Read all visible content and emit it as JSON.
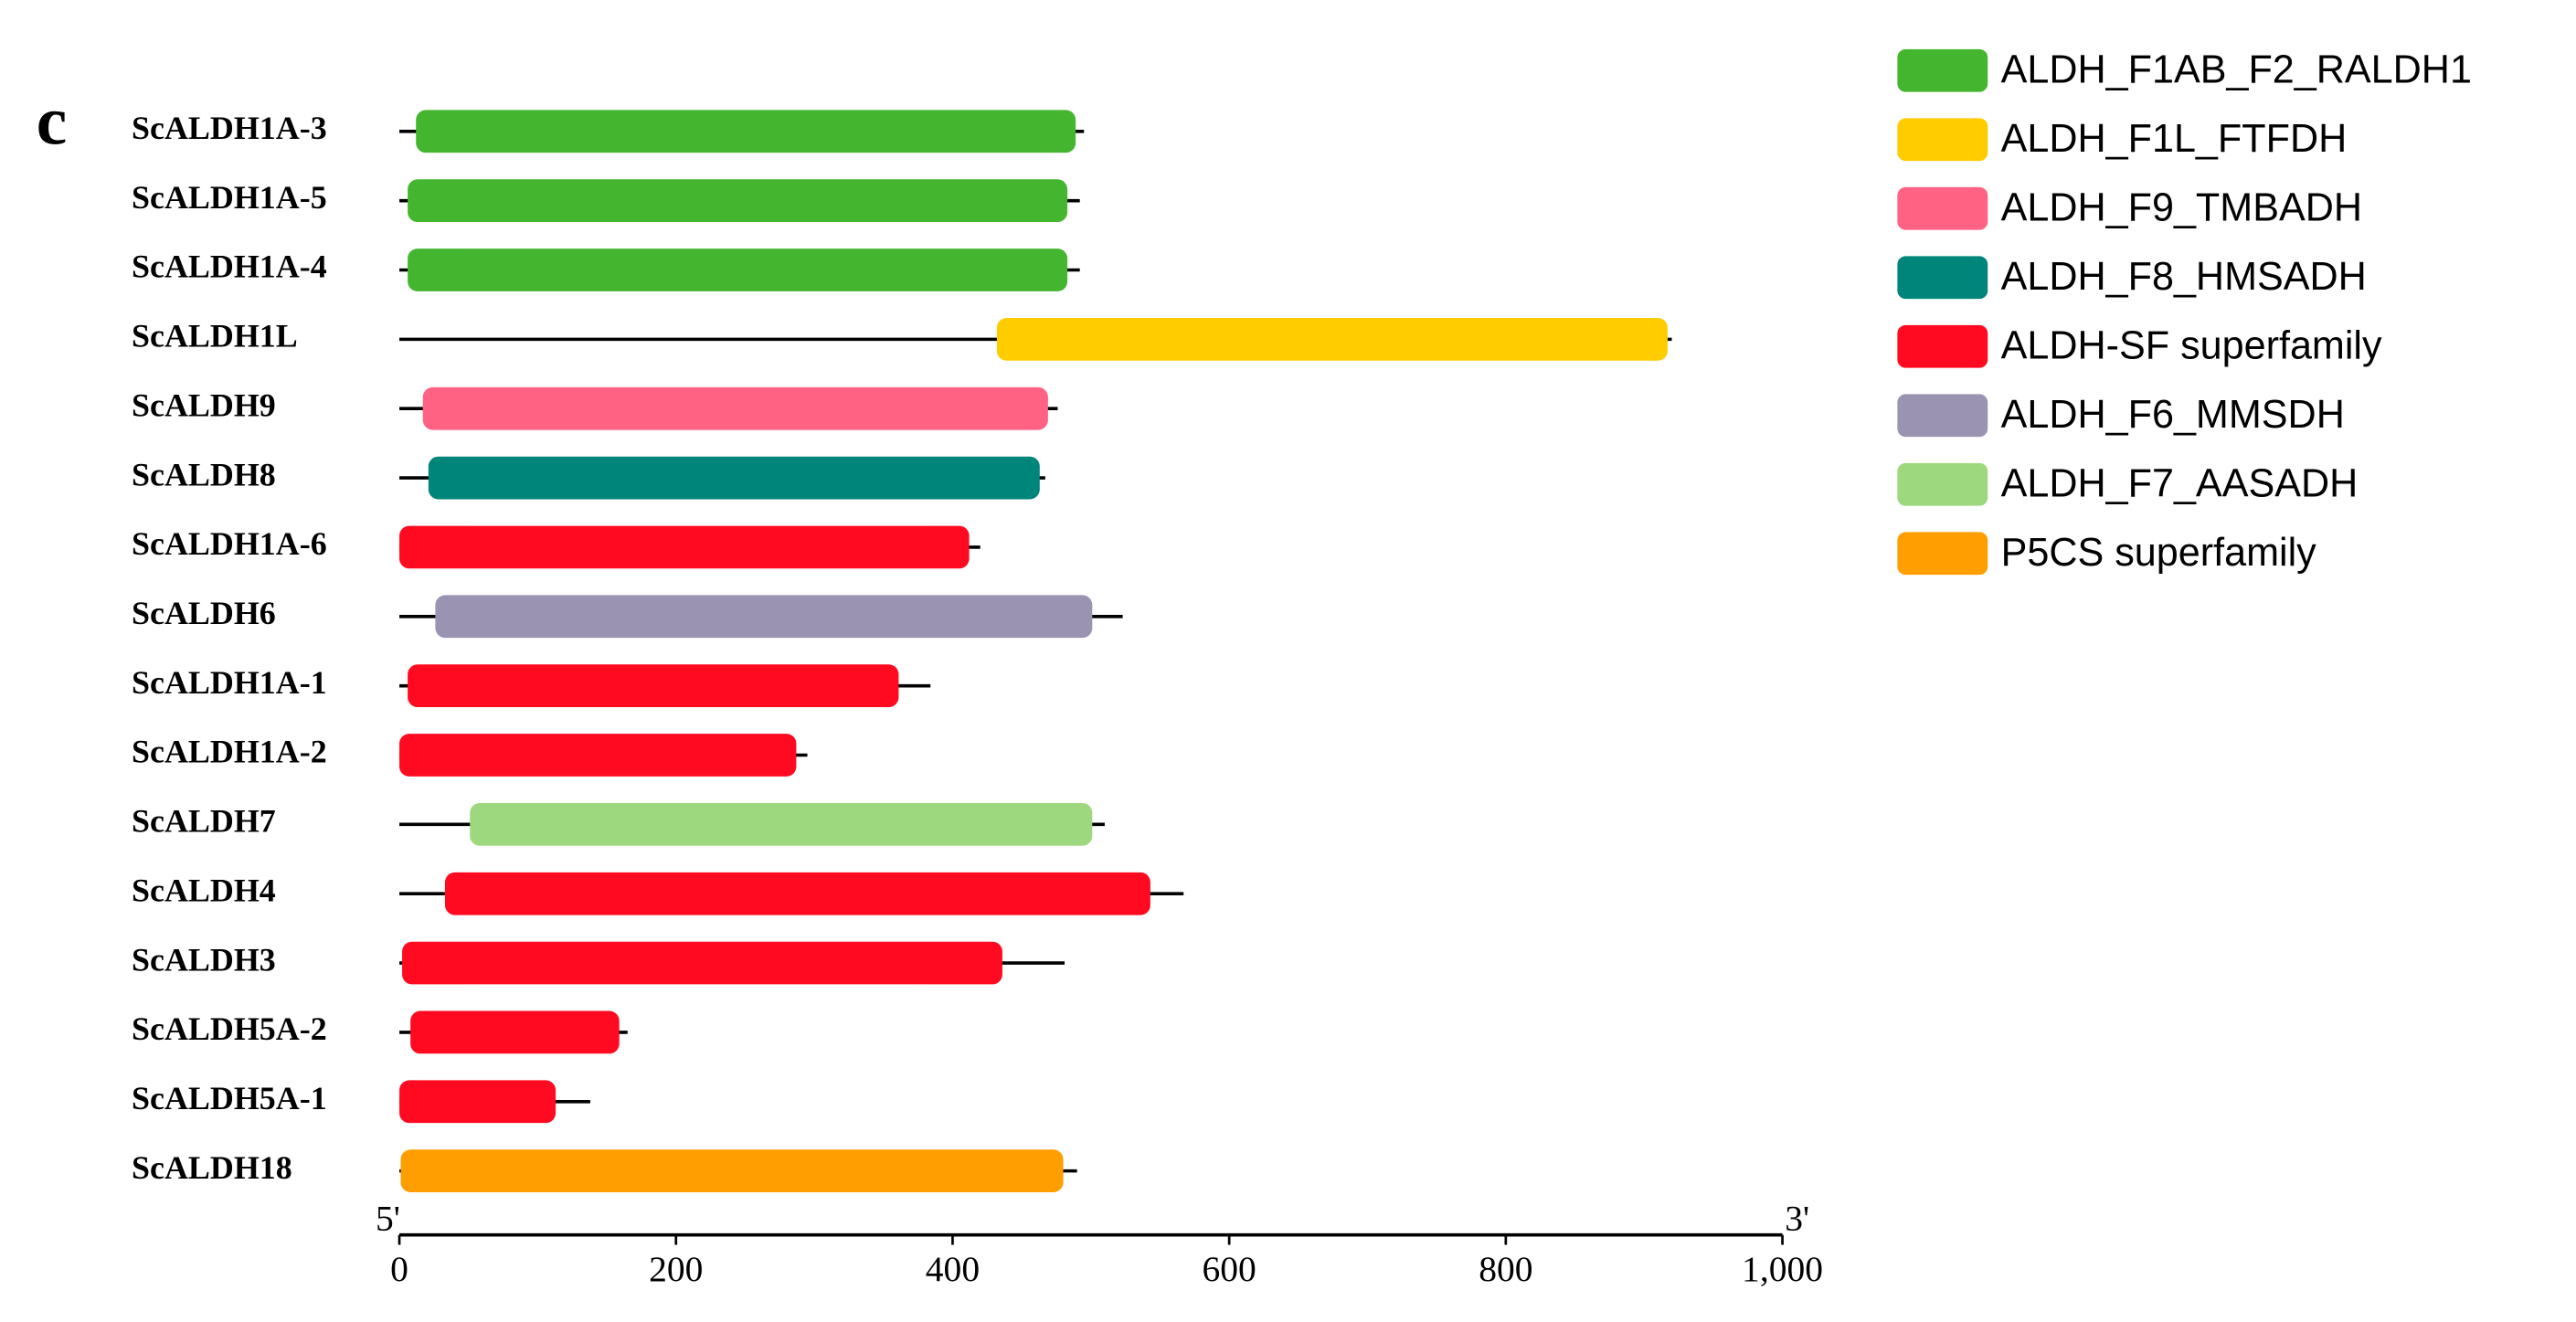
{
  "chart_data": {
    "type": "domain",
    "panel_label": "c",
    "x_start_label": "5'",
    "x_end_label": "3'",
    "xlim": [
      0,
      1000
    ],
    "xticks": [
      0,
      200,
      400,
      600,
      800,
      {
        "value": 1000,
        "label": "1,000"
      }
    ],
    "categories": [
      "ScALDH1A-3",
      "ScALDH1A-5",
      "ScALDH1A-4",
      "ScALDH1L",
      "ScALDH9",
      "ScALDH8",
      "ScALDH1A-6",
      "ScALDH6",
      "ScALDH1A-1",
      "ScALDH1A-2",
      "ScALDH7",
      "ScALDH4",
      "ScALDH3",
      "ScALDH5A-2",
      "ScALDH5A-1",
      "ScALDH18"
    ],
    "lengths": [
      495,
      492,
      492,
      920,
      476,
      467,
      420,
      523,
      384,
      295,
      510,
      567,
      481,
      165,
      138,
      490
    ],
    "series": [
      {
        "name": "ALDH_F1AB_F2_RALDH1",
        "color": "#44b52f",
        "start": [
          12,
          6,
          6,
          null,
          null,
          null,
          null,
          null,
          null,
          null,
          null,
          null,
          null,
          null,
          null,
          null
        ],
        "end": [
          489,
          483,
          483,
          null,
          null,
          null,
          null,
          null,
          null,
          null,
          null,
          null,
          null,
          null,
          null,
          null
        ]
      },
      {
        "name": "ALDH_F1L_FTFDH",
        "color": "#ffcc00",
        "start": [
          null,
          null,
          null,
          432,
          null,
          null,
          null,
          null,
          null,
          null,
          null,
          null,
          null,
          null,
          null,
          null
        ],
        "end": [
          null,
          null,
          null,
          917,
          null,
          null,
          null,
          null,
          null,
          null,
          null,
          null,
          null,
          null,
          null,
          null
        ]
      },
      {
        "name": "ALDH_F9_TMBADH",
        "color": "#ff6282",
        "start": [
          null,
          null,
          null,
          null,
          17,
          null,
          null,
          null,
          null,
          null,
          null,
          null,
          null,
          null,
          null,
          null
        ],
        "end": [
          null,
          null,
          null,
          null,
          469,
          null,
          null,
          null,
          null,
          null,
          null,
          null,
          null,
          null,
          null,
          null
        ]
      },
      {
        "name": "ALDH_F8_HMSADH",
        "color": "#00857a",
        "start": [
          null,
          null,
          null,
          null,
          null,
          21,
          null,
          null,
          null,
          null,
          null,
          null,
          null,
          null,
          null,
          null
        ],
        "end": [
          null,
          null,
          null,
          null,
          null,
          463,
          null,
          null,
          null,
          null,
          null,
          null,
          null,
          null,
          null,
          null
        ]
      },
      {
        "name": "ALDH-SF superfamily",
        "color": "#ff0a20",
        "start": [
          null,
          null,
          null,
          null,
          null,
          null,
          0,
          null,
          6,
          0,
          null,
          33,
          2,
          8,
          0,
          null
        ],
        "end": [
          null,
          null,
          null,
          null,
          null,
          null,
          412,
          null,
          361,
          287,
          null,
          543,
          436,
          159,
          113,
          null
        ]
      },
      {
        "name": "ALDH_F6_MMSDH",
        "color": "#9a93b2",
        "start": [
          null,
          null,
          null,
          null,
          null,
          null,
          null,
          26,
          null,
          null,
          null,
          null,
          null,
          null,
          null,
          null
        ],
        "end": [
          null,
          null,
          null,
          null,
          null,
          null,
          null,
          501,
          null,
          null,
          null,
          null,
          null,
          null,
          null,
          null
        ]
      },
      {
        "name": "ALDH_F7_AASADH",
        "color": "#9ed87e",
        "start": [
          null,
          null,
          null,
          null,
          null,
          null,
          null,
          null,
          null,
          null,
          51,
          null,
          null,
          null,
          null,
          null
        ],
        "end": [
          null,
          null,
          null,
          null,
          null,
          null,
          null,
          null,
          null,
          null,
          501,
          null,
          null,
          null,
          null,
          null
        ]
      },
      {
        "name": "P5CS superfamily",
        "color": "#ff9e00",
        "start": [
          null,
          null,
          null,
          null,
          null,
          null,
          null,
          null,
          null,
          null,
          null,
          null,
          null,
          null,
          null,
          1
        ],
        "end": [
          null,
          null,
          null,
          null,
          null,
          null,
          null,
          null,
          null,
          null,
          null,
          null,
          null,
          null,
          null,
          480
        ]
      }
    ]
  }
}
